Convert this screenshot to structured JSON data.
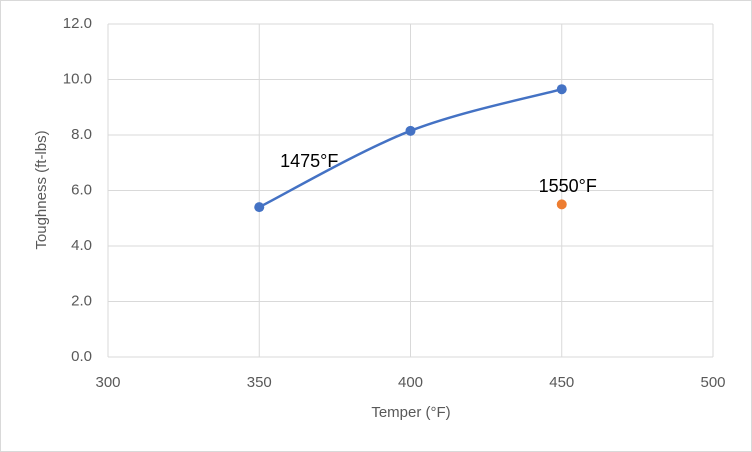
{
  "chart_data": {
    "type": "scatter",
    "smooth": true,
    "grid": true,
    "x_label": "Temper (°F)",
    "y_label": "Toughness (ft-lbs)",
    "xlim": [
      300,
      500
    ],
    "xticks": [
      300,
      350,
      400,
      450,
      500
    ],
    "ylim": [
      0,
      12
    ],
    "yticks": [
      {
        "value": 0,
        "label": "0.0"
      },
      {
        "value": 2,
        "label": "2.0"
      },
      {
        "value": 4,
        "label": "4.0"
      },
      {
        "value": 6,
        "label": "6.0"
      },
      {
        "value": 8,
        "label": "8.0"
      },
      {
        "value": 10,
        "label": "10.0"
      },
      {
        "value": 12,
        "label": "12.0"
      }
    ],
    "series": [
      {
        "name": "1475°F",
        "color": "#4472c4",
        "line": true,
        "x": [
          350,
          400,
          450
        ],
        "values": [
          5.4,
          8.15,
          9.65
        ]
      },
      {
        "name": "1550°F",
        "color": "#ed7d31",
        "line": false,
        "x": [
          450
        ],
        "values": [
          5.5
        ]
      }
    ]
  }
}
